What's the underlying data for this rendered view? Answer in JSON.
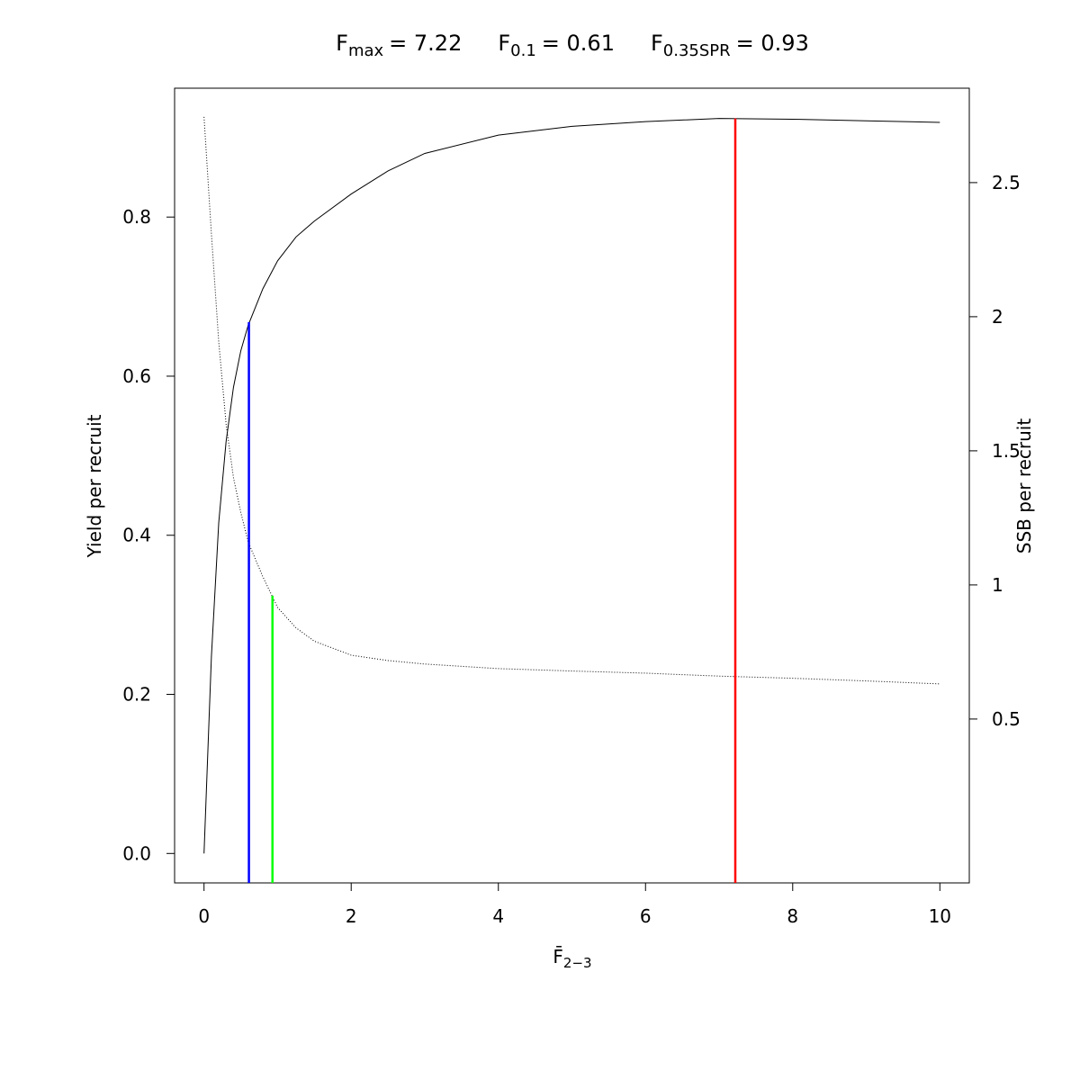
{
  "chart_data": {
    "type": "line",
    "reference_lines": [
      {
        "symbol": "F",
        "subscript": "max",
        "value_label": "= 7.22",
        "value": 7.22,
        "top": 0.924,
        "axis": "y",
        "color": "#ff0000"
      },
      {
        "symbol": "F",
        "subscript": "0.1",
        "value_label": "= 0.61",
        "value": 0.61,
        "top": 0.668,
        "axis": "y",
        "color": "#0000ff"
      },
      {
        "symbol": "F",
        "subscript": "0.35SPR",
        "value_label": "= 0.93",
        "value": 0.93,
        "top": 0.96,
        "axis": "y2",
        "color": "#00ff00"
      }
    ],
    "xlabel": "F̄",
    "xlabel_subscript": "2−3",
    "ylabel": "Yield per recruit",
    "y2label": "SSB per recruit",
    "x": [
      0,
      0.1,
      0.2,
      0.3,
      0.4,
      0.5,
      0.6,
      0.8,
      1,
      1.25,
      1.5,
      2,
      2.5,
      3,
      4,
      5,
      6,
      7,
      8,
      9,
      10
    ],
    "series": [
      {
        "color": "#000000",
        "linestyle": "solid",
        "values": [
          0,
          0.247,
          0.416,
          0.518,
          0.586,
          0.632,
          0.664,
          0.71,
          0.745,
          0.775,
          0.795,
          0.829,
          0.858,
          0.88,
          0.903,
          0.914,
          0.92,
          0.924,
          0.923,
          0.921,
          0.919
        ]
      },
      {
        "color": "#000000",
        "linestyle": "dotted",
        "axis": "y2",
        "values": [
          2.745,
          2.31,
          1.906,
          1.6,
          1.4,
          1.27,
          1.16,
          1.03,
          0.916,
          0.84,
          0.79,
          0.738,
          0.718,
          0.705,
          0.688,
          0.679,
          0.671,
          0.66,
          0.652,
          0.642,
          0.631
        ]
      }
    ],
    "xlim": [
      -0.4,
      10.4
    ],
    "xticks": [
      0,
      2,
      4,
      6,
      8,
      10
    ],
    "ylim": [
      -0.037,
      0.962
    ],
    "yticks": [
      {
        "value": 0,
        "label": "0.0"
      },
      0.2,
      0.4,
      0.6,
      0.8
    ],
    "y2lim": [
      -0.111,
      2.852
    ],
    "y2ticks": [
      0.5,
      1,
      1.5,
      2,
      2.5
    ]
  }
}
